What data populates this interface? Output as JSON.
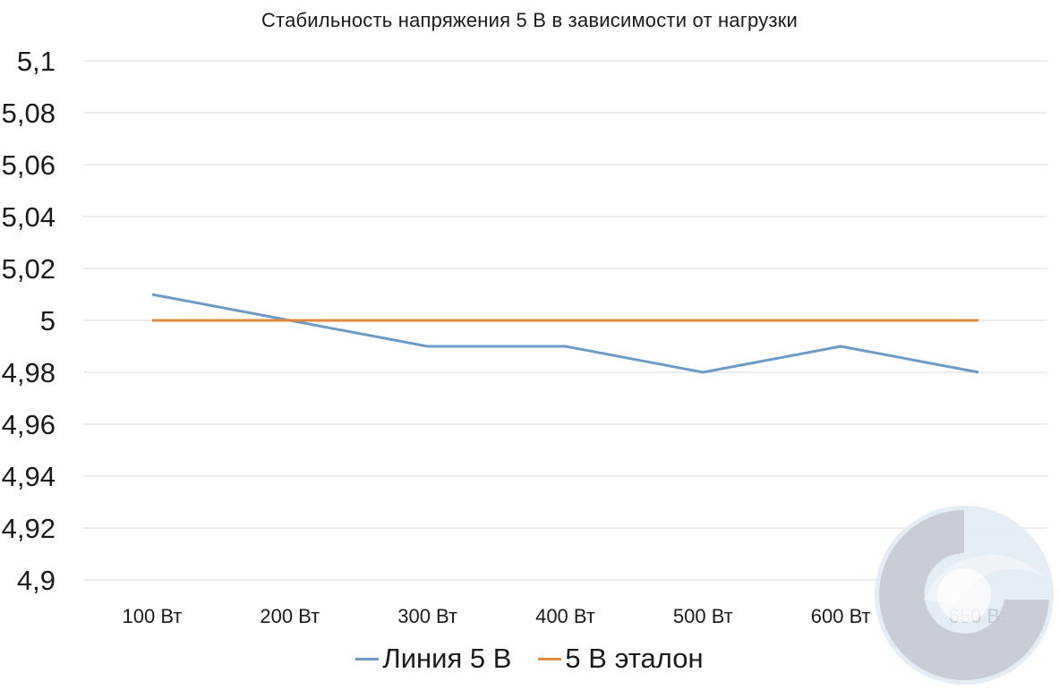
{
  "chart_data": {
    "type": "line",
    "title": "Стабильность напряжения 5 В в зависимости от нагрузки",
    "xlabel": "",
    "ylabel": "",
    "categories": [
      "100 Вт",
      "200 Вт",
      "300 Вт",
      "400 Вт",
      "500 Вт",
      "600 Вт",
      "650 Вт"
    ],
    "ylim": [
      4.9,
      5.1
    ],
    "y_ticks": [
      {
        "value": 5.1,
        "label": "5,1"
      },
      {
        "value": 5.08,
        "label": "5,08"
      },
      {
        "value": 5.06,
        "label": "5,06"
      },
      {
        "value": 5.04,
        "label": "5,04"
      },
      {
        "value": 5.02,
        "label": "5,02"
      },
      {
        "value": 5.0,
        "label": "5"
      },
      {
        "value": 4.98,
        "label": "4,98"
      },
      {
        "value": 4.96,
        "label": "4,96"
      },
      {
        "value": 4.94,
        "label": "4,94"
      },
      {
        "value": 4.92,
        "label": "4,92"
      },
      {
        "value": 4.9,
        "label": "4,9"
      }
    ],
    "grid": true,
    "legend_position": "bottom",
    "series": [
      {
        "name": "Линия 5 В",
        "color": "#6a9bc8",
        "values": [
          5.01,
          5.0,
          4.99,
          4.99,
          4.98,
          4.99,
          4.98
        ]
      },
      {
        "name": "5 В эталон",
        "color": "#e0883a",
        "values": [
          5.0,
          5.0,
          5.0,
          5.0,
          5.0,
          5.0,
          5.0
        ]
      }
    ]
  },
  "colors": {
    "gridline": "#d9d9d9",
    "text": "#1a1a1a",
    "logo_light": "#d6e3ef",
    "logo_dark": "#b7bcc4"
  },
  "logo": {
    "name": "watermark-logo"
  }
}
